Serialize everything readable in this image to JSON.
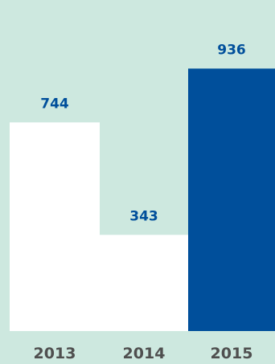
{
  "chart_data": {
    "type": "bar",
    "categories": [
      "2013",
      "2014",
      "2015"
    ],
    "values": [
      744,
      343,
      936
    ],
    "title": "",
    "xlabel": "",
    "ylabel": "",
    "ylim": [
      0,
      1000
    ],
    "grid": false,
    "bar_colors": [
      "#ffffff",
      "#ffffff",
      "#004f9b"
    ],
    "value_label_color": "#004f9b",
    "tick_label_color": "#4f4f4f",
    "background_color": "#cde8df"
  }
}
